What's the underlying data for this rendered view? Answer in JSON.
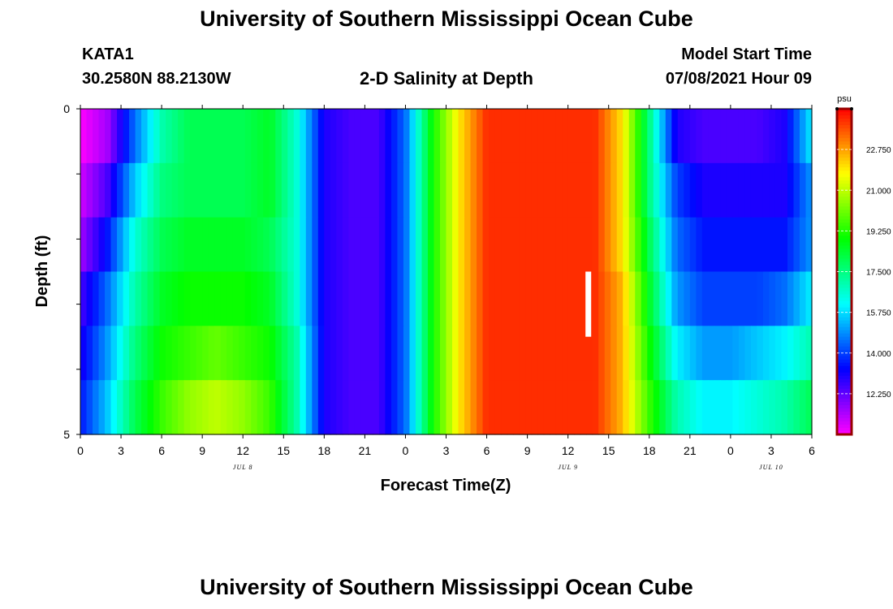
{
  "header": {
    "title": "University of Southern Mississippi Ocean Cube",
    "station_id": "KATA1",
    "station_coords": "30.2580N  88.2130W",
    "model_start_label": "Model Start Time",
    "model_start_time": "07/08/2021 Hour 09"
  },
  "footer": {
    "title": "University of Southern Mississippi Ocean Cube"
  },
  "chart_data": {
    "type": "heatmap",
    "title": "2-D Salinity at Depth",
    "xlabel": "Forecast Time(Z)",
    "ylabel": "Depth (ft)",
    "x_tick_labels": [
      "0",
      "3",
      "6",
      "9",
      "12",
      "15",
      "18",
      "21",
      "0",
      "3",
      "6",
      "9",
      "12",
      "15",
      "18",
      "21",
      "0",
      "3",
      "6"
    ],
    "date_labels": [
      {
        "label": "JUL 8",
        "tick": 4
      },
      {
        "label": "JUL 9",
        "tick": 12
      },
      {
        "label": "JUL 10",
        "tick": 17
      }
    ],
    "y_tick_labels": [
      "0",
      "5"
    ],
    "ylim": [
      0,
      5
    ],
    "colorbar": {
      "unit": "psu",
      "min": 10.5,
      "max": 24.5,
      "tick_labels": [
        "22.750",
        "21.000",
        "19.250",
        "17.500",
        "15.750",
        "14.000",
        "12.250"
      ],
      "tick_values": [
        22.75,
        21.0,
        19.25,
        17.5,
        15.75,
        14.0,
        12.25
      ]
    },
    "depth_layers": [
      0,
      1,
      2,
      3,
      4,
      5
    ],
    "hours": [
      0,
      2,
      4,
      6,
      8,
      10,
      12,
      14,
      16,
      18,
      20,
      22,
      24,
      26,
      28,
      30,
      32,
      34,
      36,
      38,
      40,
      42,
      44,
      46,
      48,
      50,
      52,
      54
    ],
    "salinity_psu": [
      [
        10.5,
        11.5,
        14.5,
        17.0,
        18.0,
        18.0,
        18.0,
        18.5,
        16.5,
        13.0,
        12.5,
        12.5,
        14.5,
        19.0,
        22.0,
        24.0,
        24.0,
        24.0,
        24.0,
        24.0,
        22.0,
        17.5,
        13.0,
        12.5,
        12.5,
        12.5,
        13.0,
        16.0
      ],
      [
        11.0,
        12.5,
        15.5,
        17.5,
        18.0,
        18.0,
        18.0,
        18.5,
        16.5,
        13.0,
        12.5,
        12.5,
        14.5,
        19.0,
        22.0,
        24.0,
        24.0,
        24.0,
        24.0,
        24.0,
        22.0,
        17.5,
        14.0,
        13.0,
        13.0,
        13.0,
        13.0,
        15.0
      ],
      [
        11.5,
        13.5,
        16.5,
        18.0,
        18.5,
        18.5,
        18.5,
        18.0,
        16.5,
        13.0,
        12.5,
        12.5,
        14.5,
        19.0,
        22.0,
        24.0,
        24.0,
        24.0,
        24.0,
        24.0,
        22.0,
        18.0,
        14.5,
        13.5,
        13.5,
        13.5,
        13.5,
        15.0
      ],
      [
        12.5,
        14.5,
        17.0,
        18.5,
        19.0,
        19.0,
        19.0,
        18.5,
        16.5,
        13.0,
        12.5,
        12.5,
        14.5,
        19.0,
        22.0,
        24.0,
        24.0,
        24.0,
        24.0,
        24.0,
        22.5,
        18.5,
        15.0,
        14.0,
        14.0,
        14.0,
        14.5,
        16.0
      ],
      [
        13.0,
        15.0,
        17.5,
        19.0,
        19.5,
        20.0,
        19.5,
        19.0,
        17.0,
        13.0,
        12.5,
        12.5,
        14.5,
        19.0,
        22.0,
        24.0,
        24.0,
        24.0,
        24.0,
        24.0,
        22.5,
        19.0,
        16.0,
        15.0,
        15.0,
        15.5,
        16.0,
        17.0
      ],
      [
        13.5,
        15.5,
        18.0,
        19.5,
        20.5,
        21.0,
        20.5,
        19.5,
        17.0,
        13.0,
        12.5,
        12.5,
        14.5,
        19.0,
        22.0,
        24.0,
        24.0,
        24.0,
        24.0,
        24.0,
        22.5,
        19.5,
        17.0,
        16.0,
        16.0,
        16.5,
        17.0,
        18.0
      ]
    ],
    "marker": {
      "hour": 37.5,
      "depth_from": 2.5,
      "depth_to": 3.5,
      "color": "#ffffff"
    },
    "colors": {
      "frame": "#000000",
      "colorbar_frame": "#990000"
    }
  }
}
